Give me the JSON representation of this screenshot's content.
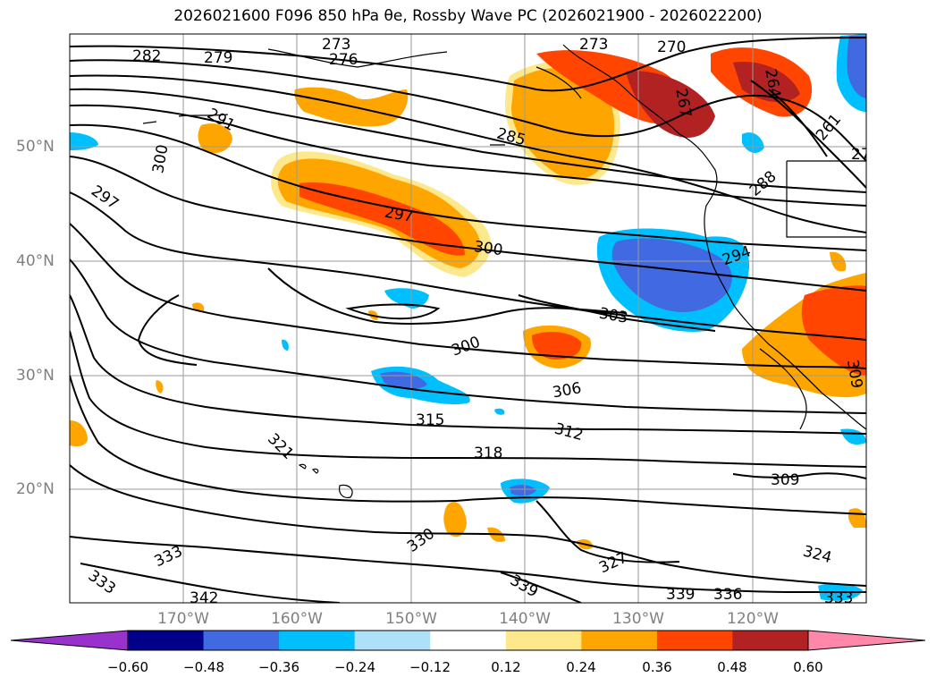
{
  "title": "2026021600 F096 850 hPa θe, Rossby Wave PC (2026021900 - 2026022200)",
  "map": {
    "latitude_labels": [
      "50°N",
      "40°N",
      "30°N",
      "20°N"
    ],
    "longitude_labels": [
      "170°W",
      "160°W",
      "150°W",
      "140°W",
      "130°W",
      "120°W"
    ],
    "contour_labels": [
      "282",
      "279",
      "273",
      "276",
      "273",
      "270",
      "267",
      "264",
      "261",
      "27",
      "291",
      "300",
      "297",
      "285",
      "297",
      "300",
      "288",
      "294",
      "303",
      "300",
      "306",
      "315",
      "312",
      "318",
      "321",
      "309",
      "330",
      "327",
      "324",
      "333",
      "333",
      "342",
      "339",
      "339",
      "336",
      "333",
      "309"
    ],
    "shading_colors": {
      "positive_light": "#fde98c",
      "positive_orange": "#ffa500",
      "positive_red": "#ff4500",
      "positive_dark": "#b22222",
      "negative_light": "#00bfff",
      "negative_mid": "#4169e1"
    }
  },
  "colorbar": {
    "tick_labels": [
      "−0.60",
      "−0.48",
      "−0.36",
      "−0.24",
      "−0.12",
      "0.12",
      "0.24",
      "0.36",
      "0.48",
      "0.60"
    ],
    "colors": [
      "#9932cc",
      "#00008b",
      "#4169e1",
      "#00bfff",
      "#afe0fa",
      "#ffffff",
      "#fde98c",
      "#ffa500",
      "#ff4500",
      "#b22222",
      "#ff88aa"
    ]
  }
}
